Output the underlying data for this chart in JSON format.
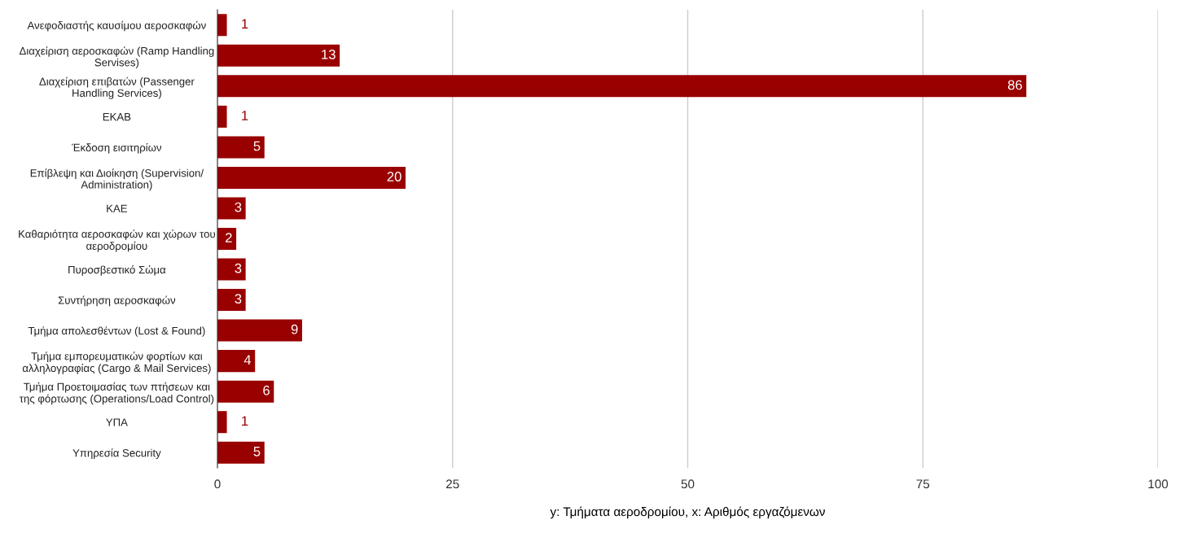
{
  "chart_data": {
    "type": "bar",
    "orientation": "horizontal",
    "categories": [
      "Ανεφοδιαστής καυσίμου αεροσκαφών",
      "Διαχείριση αεροσκαφών (Ramp Handling Servises)",
      "Διαχείριση επιβατών (Passenger Handling Services)",
      "ΕΚΑΒ",
      "Έκδοση εισιτηρίων",
      "Επίβλεψη και Διοίκηση (Supervision/ Administration)",
      "ΚΑΕ",
      "Καθαριότητα αεροσκαφών και χώρων του αεροδρομίου",
      "Πυροσβεστικό Σώμα",
      "Συντήρηση αεροσκαφών",
      "Τμήμα απολεσθέντων (Lost & Found)",
      "Τμήμα εμπορευματικών φορτίων και αλληλογραφίας (Cargo & Mail Services)",
      "Τμήμα Προετοιμασίας των πτήσεων και της φόρτωσης (Operations/Load Control)",
      "ΥΠΑ",
      "Υπηρεσία Security"
    ],
    "values": [
      1,
      13,
      86,
      1,
      5,
      20,
      3,
      2,
      3,
      3,
      9,
      4,
      6,
      1,
      5
    ],
    "color": "#990000",
    "xlim": [
      0,
      100
    ],
    "xticks": [
      0,
      25,
      50,
      75,
      100
    ],
    "xlabel": "y: Τμήματα αεροδρομίου, x: Αριθμός εργαζόμενων",
    "grid": "x",
    "data_labels": true
  }
}
